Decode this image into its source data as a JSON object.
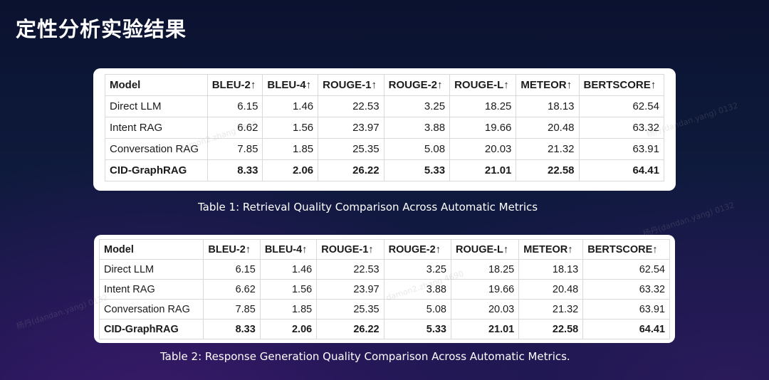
{
  "slide_title": "定性分析实验结果",
  "tables": [
    {
      "headers": [
        "Model",
        "BLEU-2↑",
        "BLEU-4↑",
        "ROUGE-1↑",
        "ROUGE-2↑",
        "ROUGE-L↑",
        "METEOR↑",
        "BERTSCORE↑"
      ],
      "rows": [
        [
          "Direct LLM",
          "6.15",
          "1.46",
          "22.53",
          "3.25",
          "18.25",
          "18.13",
          "62.54"
        ],
        [
          "Intent RAG",
          "6.62",
          "1.56",
          "23.97",
          "3.88",
          "19.66",
          "20.48",
          "63.32"
        ],
        [
          "Conversation RAG",
          "7.85",
          "1.85",
          "25.35",
          "5.08",
          "20.03",
          "21.32",
          "63.91"
        ],
        [
          "CID-GraphRAG",
          "8.33",
          "2.06",
          "26.22",
          "5.33",
          "21.01",
          "22.58",
          "64.41"
        ]
      ],
      "caption": "Table 1: Retrieval Quality Comparison Across Automatic Metrics"
    },
    {
      "headers": [
        "Model",
        "BLEU-2↑",
        "BLEU-4↑",
        "ROUGE-1↑",
        "ROUGE-2↑",
        "ROUGE-L↑",
        "METEOR↑",
        "BERTSCORE↑"
      ],
      "rows": [
        [
          "Direct LLM",
          "6.15",
          "1.46",
          "22.53",
          "3.25",
          "18.25",
          "18.13",
          "62.54"
        ],
        [
          "Intent RAG",
          "6.62",
          "1.56",
          "23.97",
          "3.88",
          "19.66",
          "20.48",
          "63.32"
        ],
        [
          "Conversation RAG",
          "7.85",
          "1.85",
          "25.35",
          "5.08",
          "20.03",
          "21.32",
          "63.91"
        ],
        [
          "CID-GraphRAG",
          "8.33",
          "2.06",
          "26.22",
          "5.33",
          "21.01",
          "22.58",
          "64.41"
        ]
      ],
      "caption": "Table 2: Response Generation Quality Comparison Across Automatic Metrics."
    }
  ],
  "watermarks": [
    "damon2.zhang 4690",
    "杨丹(dandan.yang) 0132"
  ]
}
